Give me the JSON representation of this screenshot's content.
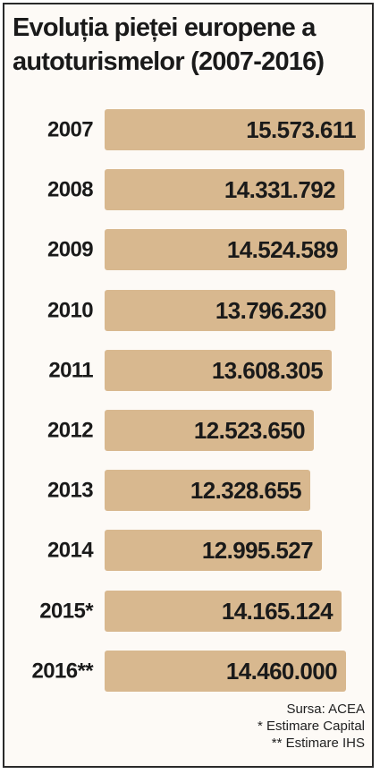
{
  "chart_data": {
    "type": "bar",
    "orientation": "horizontal",
    "title": "Evoluția pieței europene a autoturismelor (2007-2016)",
    "categories": [
      "2007",
      "2008",
      "2009",
      "2010",
      "2011",
      "2012",
      "2013",
      "2014",
      "2015*",
      "2016**"
    ],
    "values": [
      15573611,
      14331792,
      14524589,
      13796230,
      13608305,
      12523650,
      12328655,
      12995527,
      14165124,
      14460000
    ],
    "value_labels": [
      "15.573.611",
      "14.331.792",
      "14.524.589",
      "13.796.230",
      "13.608.305",
      "12.523.650",
      "12.328.655",
      "12.995.527",
      "14.165.124",
      "14.460.000"
    ],
    "xlim": [
      0,
      15573611
    ],
    "bar_color": "#d8b88f",
    "grid": false,
    "legend": "none"
  },
  "notes": {
    "source": "Sursa: ACEA",
    "note1": "* Estimare Capital",
    "note2": "** Estimare IHS"
  }
}
